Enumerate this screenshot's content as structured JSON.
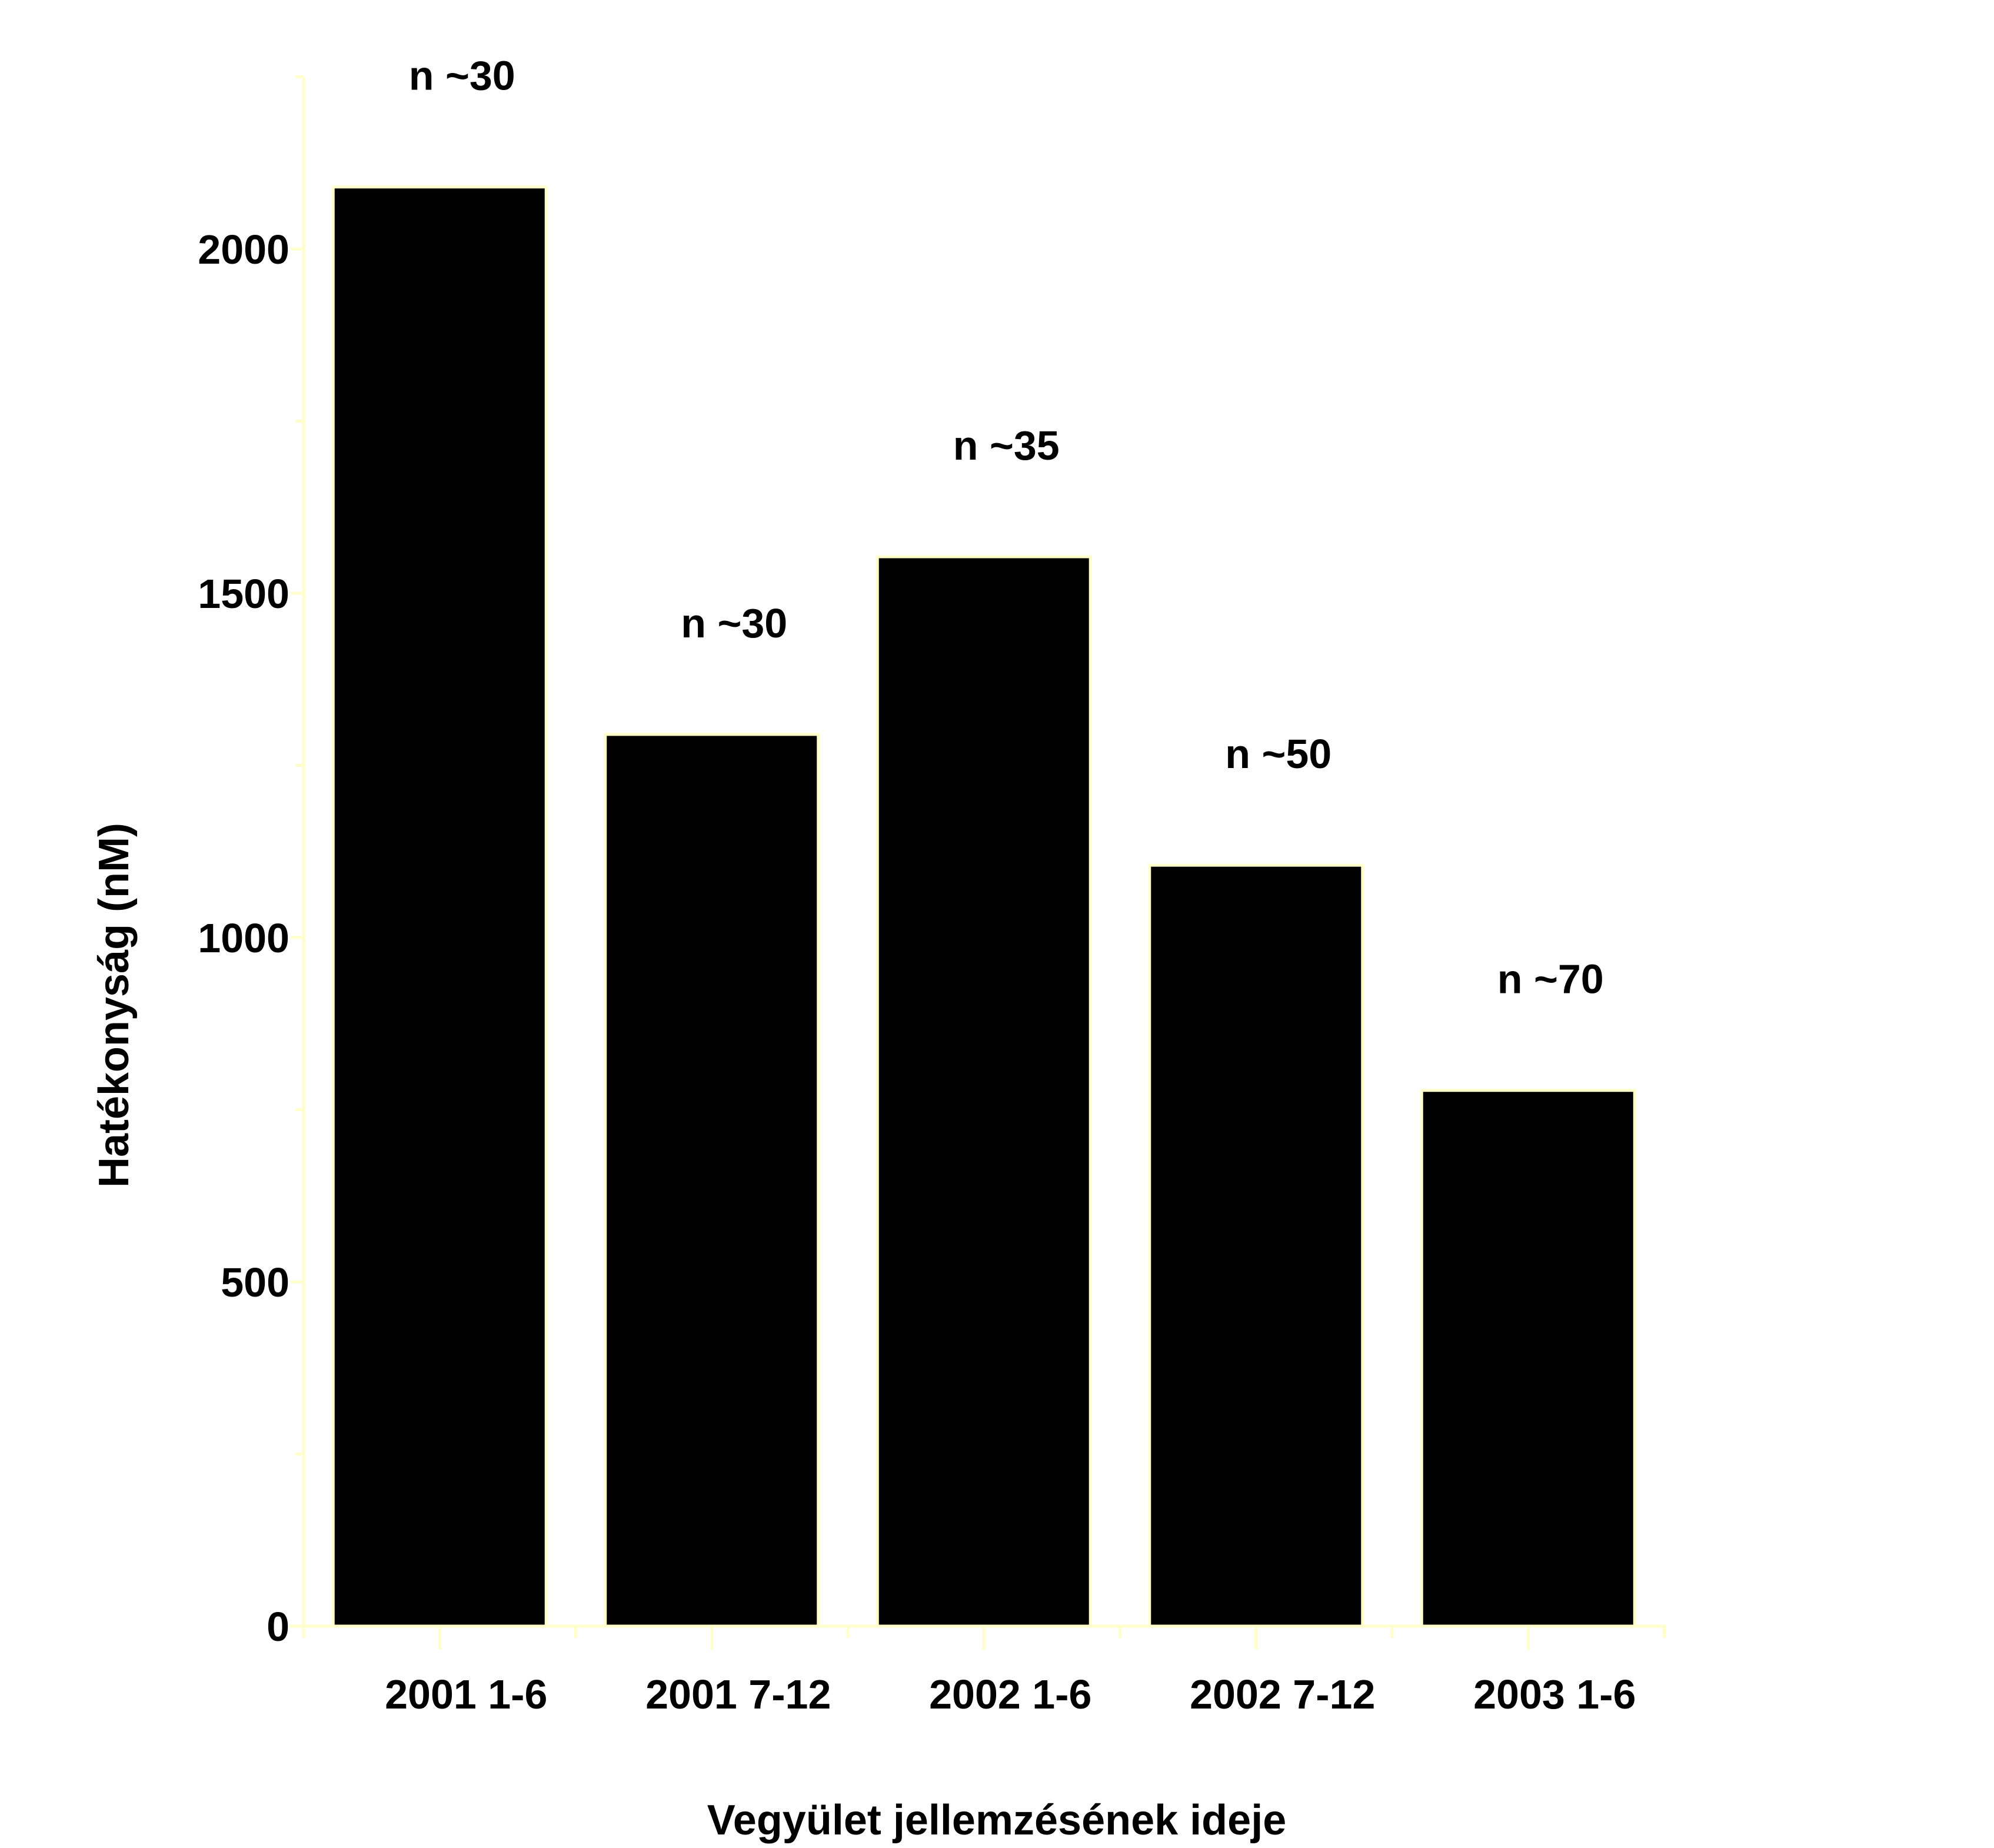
{
  "chart_data": {
    "type": "bar",
    "title": "",
    "xlabel": "Vegyület jellemzésének ideje",
    "ylabel": "Hatékonyság (nM)",
    "ylim": [
      0,
      2250
    ],
    "yticks": [
      0,
      500,
      1000,
      1500,
      2000
    ],
    "y_minor_ticks": [
      250,
      750,
      1250,
      1750,
      2250
    ],
    "grid": false,
    "categories": [
      "2001 1-6",
      "2001 7-12",
      "2002 1-6",
      "2002 7-12",
      "2003 1-6"
    ],
    "values": [
      2090,
      1295,
      1553,
      1105,
      778
    ],
    "annotations": [
      "n ~30",
      "n ~30",
      "n ~35",
      "n ~50",
      "n ~70"
    ],
    "colors": {
      "bar_fill": "#000000",
      "bar_edge": "#ffffcc",
      "axis": "#ffffcc",
      "text": "#000000",
      "background": "#ffffff"
    }
  }
}
